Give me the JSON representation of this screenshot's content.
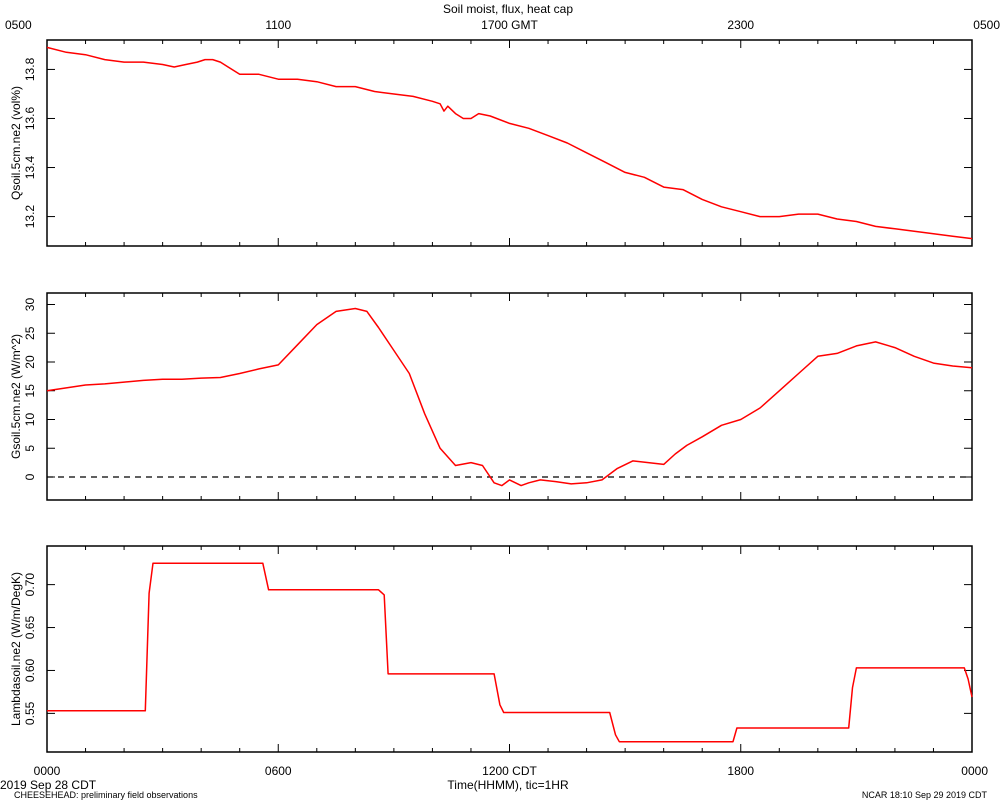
{
  "figure": {
    "title": "Soil moist, flux, heat cap",
    "date_label": "2019 Sep 28 CDT",
    "project_label": "CHEESEHEAD: preliminary field observations",
    "stamp_label": "NCAR 18:10 Sep 29 2019 CDT"
  },
  "top_axis": {
    "ticks": [
      0,
      6,
      12,
      18,
      24
    ],
    "tick_labels": [
      "0500",
      "1100",
      "1700 GMT",
      "2300",
      "0500"
    ]
  },
  "bottom_axis": {
    "ticks": [
      0,
      6,
      12,
      18,
      24
    ],
    "tick_labels": [
      "0000",
      "0600",
      "1200 CDT",
      "1800",
      "0000"
    ],
    "xlabel": "Time(HHMM), tic=1HR"
  },
  "colors": {
    "series": "#ff0000",
    "axis": "#000000",
    "zero_line": "#000000"
  },
  "chart_data": [
    {
      "type": "line",
      "ylabel": "Qsoil.5cm.ne2 (vol%)",
      "xlim": [
        0,
        24
      ],
      "ylim": [
        13.08,
        13.92
      ],
      "yticks": [
        13.2,
        13.4,
        13.6,
        13.8
      ],
      "ytick_labels": [
        "13.2",
        "13.4",
        "13.6",
        "13.8"
      ],
      "x": [
        0,
        0.5,
        1,
        1.5,
        2,
        2.5,
        3,
        3.3,
        3.6,
        3.9,
        4.1,
        4.3,
        4.5,
        4.7,
        4.9,
        5,
        5.2,
        5.5,
        6,
        6.5,
        7,
        7.5,
        8,
        8.5,
        9,
        9.5,
        10,
        10.2,
        10.3,
        10.4,
        10.6,
        10.8,
        11,
        11.2,
        11.5,
        12,
        12.5,
        13,
        13.5,
        14,
        14.5,
        15,
        15.5,
        16,
        16.5,
        17,
        17.5,
        18,
        18.5,
        19,
        19.5,
        20,
        20.5,
        21,
        21.5,
        22,
        22.5,
        23,
        23.5,
        24
      ],
      "y": [
        13.89,
        13.87,
        13.86,
        13.84,
        13.83,
        13.83,
        13.82,
        13.81,
        13.82,
        13.83,
        13.84,
        13.84,
        13.83,
        13.81,
        13.79,
        13.78,
        13.78,
        13.78,
        13.76,
        13.76,
        13.75,
        13.73,
        13.73,
        13.71,
        13.7,
        13.69,
        13.67,
        13.66,
        13.63,
        13.65,
        13.62,
        13.6,
        13.6,
        13.62,
        13.61,
        13.58,
        13.56,
        13.53,
        13.5,
        13.46,
        13.42,
        13.38,
        13.36,
        13.32,
        13.31,
        13.27,
        13.24,
        13.22,
        13.2,
        13.2,
        13.21,
        13.21,
        13.19,
        13.18,
        13.16,
        13.15,
        13.14,
        13.13,
        13.12,
        13.11
      ]
    },
    {
      "type": "line",
      "ylabel": "Gsoil.5cm.ne2 (W/m^2)",
      "xlim": [
        0,
        24
      ],
      "ylim": [
        -4,
        32
      ],
      "yticks": [
        0,
        5,
        10,
        15,
        20,
        25,
        30
      ],
      "ytick_labels": [
        "0",
        "5",
        "10",
        "15",
        "20",
        "25",
        "30"
      ],
      "zero_line": true,
      "x": [
        0,
        0.5,
        1,
        1.5,
        2,
        2.5,
        3,
        3.5,
        4,
        4.5,
        5,
        5.5,
        6,
        6.5,
        7,
        7.5,
        8,
        8.3,
        8.6,
        9,
        9.4,
        9.8,
        10.2,
        10.6,
        11,
        11.3,
        11.6,
        11.8,
        12,
        12.3,
        12.5,
        12.8,
        13.2,
        13.6,
        14,
        14.4,
        14.8,
        15.2,
        15.6,
        16,
        16.3,
        16.6,
        17,
        17.5,
        18,
        18.5,
        19,
        19.5,
        20,
        20.5,
        21,
        21.5,
        22,
        22.5,
        23,
        23.5,
        24
      ],
      "y": [
        15,
        15.5,
        16,
        16.2,
        16.5,
        16.8,
        17,
        17,
        17.2,
        17.3,
        18,
        18.8,
        19.5,
        23,
        26.5,
        28.8,
        29.3,
        28.8,
        26,
        22,
        18,
        11,
        5,
        2,
        2.5,
        2,
        -1,
        -1.5,
        -0.5,
        -1.5,
        -1,
        -0.5,
        -0.8,
        -1.2,
        -1,
        -0.5,
        1.5,
        2.8,
        2.5,
        2.2,
        4,
        5.5,
        7,
        9,
        10,
        12,
        15,
        18,
        21,
        21.5,
        22.8,
        23.5,
        22.5,
        21,
        19.8,
        19.3,
        19
      ]
    },
    {
      "type": "line",
      "ylabel": "Lambdasoil.ne2 (W/m/DegK)",
      "xlim": [
        0,
        24
      ],
      "ylim": [
        0.505,
        0.745
      ],
      "yticks": [
        0.55,
        0.6,
        0.65,
        0.7
      ],
      "ytick_labels": [
        "0.55",
        "0.60",
        "0.65",
        "0.70"
      ],
      "x": [
        0,
        2.55,
        2.65,
        2.75,
        5.6,
        5.75,
        8.6,
        8.75,
        8.85,
        11.6,
        11.75,
        11.85,
        14.6,
        14.75,
        14.85,
        17.8,
        17.9,
        20.8,
        20.9,
        21,
        23.8,
        23.9,
        24
      ],
      "y": [
        0.553,
        0.553,
        0.69,
        0.725,
        0.725,
        0.694,
        0.694,
        0.688,
        0.596,
        0.596,
        0.56,
        0.551,
        0.551,
        0.525,
        0.517,
        0.517,
        0.533,
        0.533,
        0.58,
        0.603,
        0.603,
        0.59,
        0.569
      ]
    }
  ]
}
